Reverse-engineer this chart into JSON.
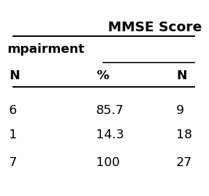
{
  "title": "MMSE Score",
  "col2_header": "mpairment",
  "sub_headers": [
    "N",
    "%",
    "N"
  ],
  "rows": [
    [
      "6",
      "85.7",
      "9"
    ],
    [
      "1",
      "14.3",
      "18"
    ],
    [
      "7",
      "100",
      "27"
    ]
  ],
  "background_color": "#ffffff",
  "text_color": "#000000",
  "font_size_title": 14,
  "font_size_subheader": 13,
  "font_size_colheader": 13,
  "font_size_data": 13,
  "line_color": "#000000"
}
